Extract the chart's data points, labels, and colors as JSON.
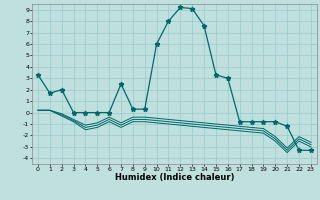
{
  "xlabel": "Humidex (Indice chaleur)",
  "background_color": "#c0e0e0",
  "grid_color": "#98c8c8",
  "line_color": "#006868",
  "xlim": [
    -0.5,
    23.5
  ],
  "ylim": [
    -4.5,
    9.5
  ],
  "xticks": [
    0,
    1,
    2,
    3,
    4,
    5,
    6,
    7,
    8,
    9,
    10,
    11,
    12,
    13,
    14,
    15,
    16,
    17,
    18,
    19,
    20,
    21,
    22,
    23
  ],
  "yticks": [
    -4,
    -3,
    -2,
    -1,
    0,
    1,
    2,
    3,
    4,
    5,
    6,
    7,
    8,
    9
  ],
  "main_series": [
    3.3,
    1.7,
    2.0,
    0.0,
    0.0,
    0.0,
    0.0,
    2.5,
    0.3,
    0.3,
    6.0,
    8.0,
    9.2,
    9.1,
    7.6,
    3.3,
    3.0,
    -0.8,
    -0.8,
    -0.8,
    -0.8,
    -1.2,
    -3.3,
    -3.3
  ],
  "flat_series": [
    [
      0.2,
      0.2,
      -0.3,
      -0.8,
      -1.5,
      -1.3,
      -0.8,
      -1.3,
      -0.8,
      -0.8,
      -0.9,
      -1.0,
      -1.1,
      -1.2,
      -1.3,
      -1.4,
      -1.5,
      -1.6,
      -1.7,
      -1.8,
      -2.5,
      -3.5,
      -2.5,
      -3.0
    ],
    [
      0.2,
      0.2,
      -0.2,
      -0.7,
      -1.3,
      -1.1,
      -0.6,
      -1.1,
      -0.6,
      -0.6,
      -0.7,
      -0.8,
      -0.9,
      -1.0,
      -1.1,
      -1.2,
      -1.3,
      -1.4,
      -1.5,
      -1.6,
      -2.3,
      -3.3,
      -2.3,
      -2.8
    ],
    [
      0.2,
      0.2,
      -0.1,
      -0.6,
      -1.1,
      -0.9,
      -0.4,
      -0.9,
      -0.4,
      -0.4,
      -0.5,
      -0.6,
      -0.7,
      -0.8,
      -0.9,
      -1.0,
      -1.1,
      -1.2,
      -1.3,
      -1.4,
      -2.1,
      -3.1,
      -2.1,
      -2.6
    ]
  ]
}
